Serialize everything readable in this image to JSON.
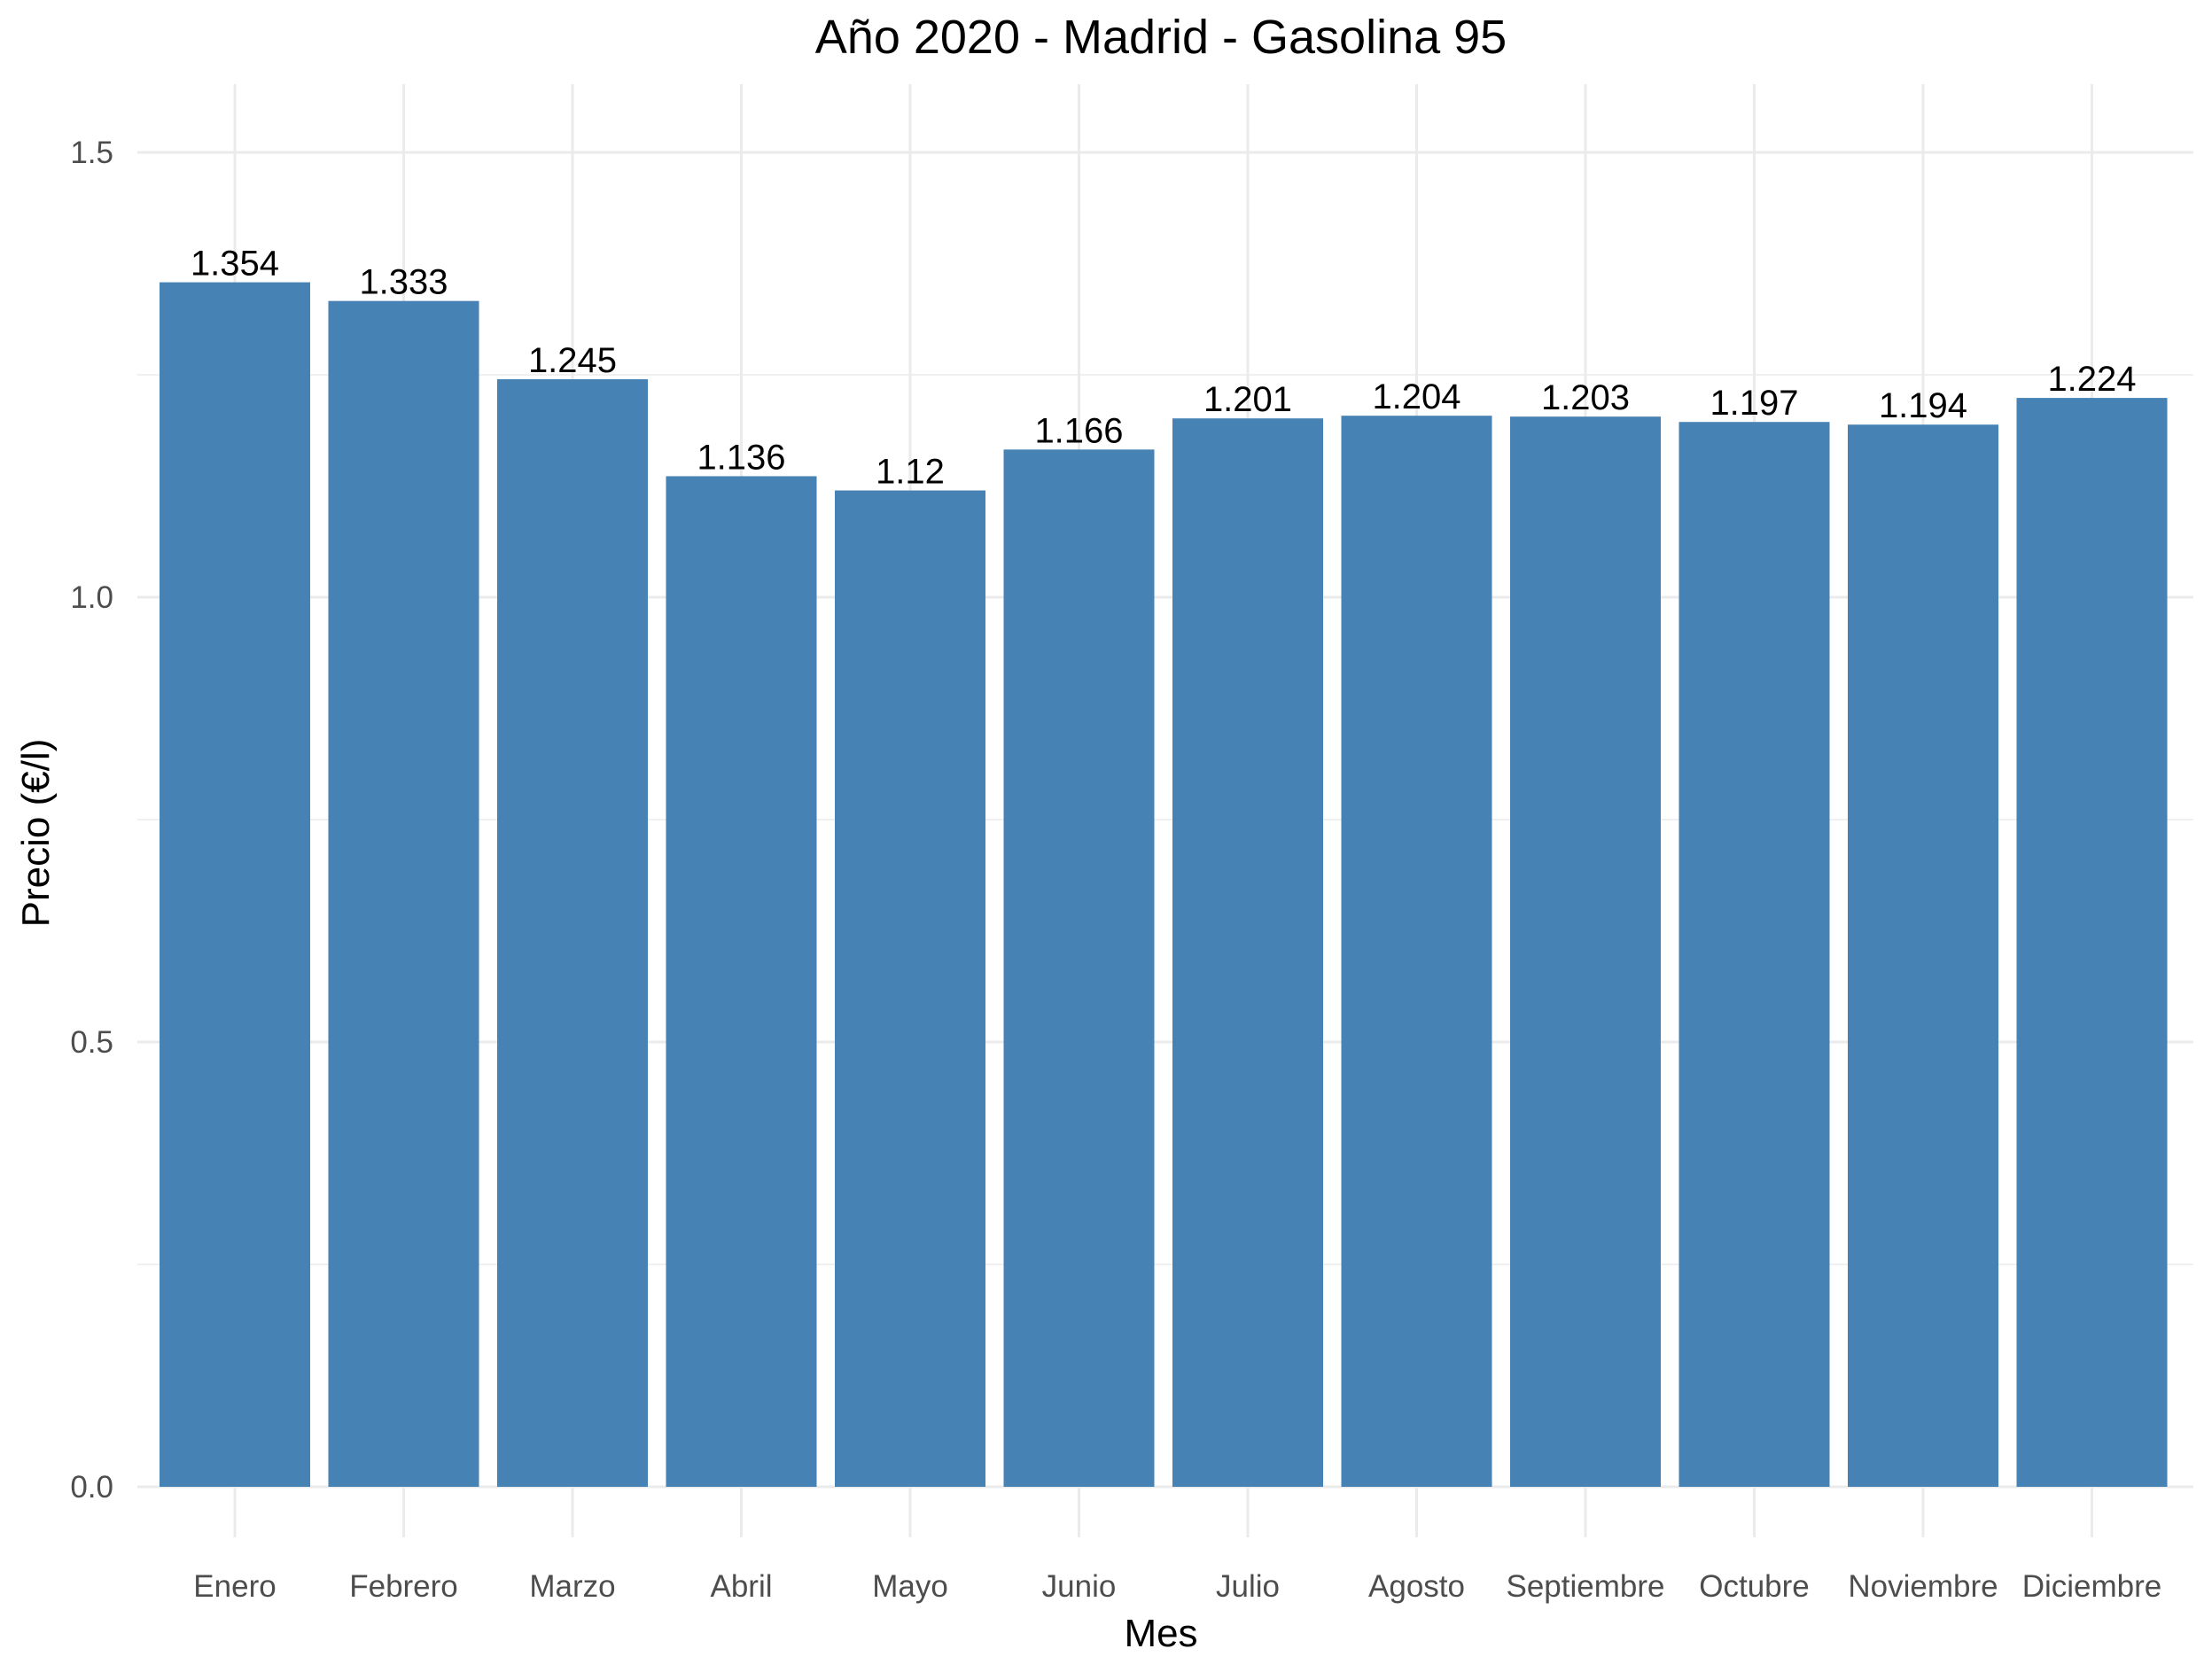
{
  "chart_data": {
    "type": "bar",
    "title": "Año 2020 - Madrid - Gasolina 95",
    "xlabel": "Mes",
    "ylabel": "Precio (€/l)",
    "categories": [
      "Enero",
      "Febrero",
      "Marzo",
      "Abril",
      "Mayo",
      "Junio",
      "Julio",
      "Agosto",
      "Septiembre",
      "Octubre",
      "Noviembre",
      "Diciembre"
    ],
    "values": [
      1.354,
      1.333,
      1.245,
      1.136,
      1.12,
      1.166,
      1.201,
      1.204,
      1.203,
      1.197,
      1.194,
      1.224
    ],
    "value_labels": [
      "1.354",
      "1.333",
      "1.245",
      "1.136",
      "1.12",
      "1.166",
      "1.201",
      "1.204",
      "1.203",
      "1.197",
      "1.194",
      "1.224"
    ],
    "yticks": [
      0.0,
      0.5,
      1.0,
      1.5
    ],
    "ytick_labels": [
      "0.0",
      "0.5",
      "1.0",
      "1.5"
    ],
    "ylim": [
      0,
      1.58
    ],
    "grid": true,
    "legend": "none",
    "bar_color": "#4682b4"
  }
}
